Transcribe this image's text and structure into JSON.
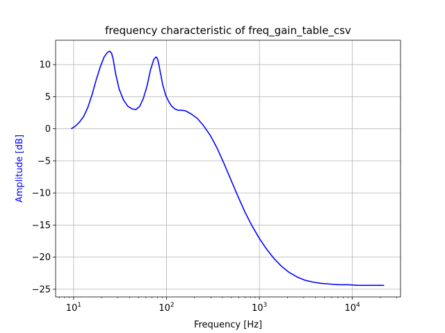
{
  "chart_data": {
    "type": "line",
    "title": "frequency characteristic of freq_gain_table_csv",
    "xlabel": "Frequency [Hz]",
    "ylabel": "Amplitude [dB]",
    "xscale": "log",
    "xlim": [
      6.4,
      33000
    ],
    "ylim": [
      -26.2,
      13.8
    ],
    "grid": true,
    "colors": {
      "line": "#0000ff",
      "ylabel": "#0000ff",
      "grid": "#b0b0b0"
    },
    "xticks": [
      {
        "value": 10,
        "base": "10",
        "exp": "1"
      },
      {
        "value": 100,
        "base": "10",
        "exp": "2"
      },
      {
        "value": 1000,
        "base": "10",
        "exp": "3"
      },
      {
        "value": 10000,
        "base": "10",
        "exp": "4"
      }
    ],
    "yticks": [
      {
        "value": 10,
        "label": "10"
      },
      {
        "value": 5,
        "label": "5"
      },
      {
        "value": 0,
        "label": "0"
      },
      {
        "value": -5,
        "label": "−5"
      },
      {
        "value": -10,
        "label": "−10"
      },
      {
        "value": -15,
        "label": "−15"
      },
      {
        "value": -20,
        "label": "−20"
      },
      {
        "value": -25,
        "label": "−25"
      }
    ],
    "series": [
      {
        "x": [
          9.4,
          10.4,
          11.5,
          12.8,
          14.2,
          15.7,
          17.4,
          19.3,
          21.3,
          23.1,
          24.5,
          25.6,
          26.7,
          28.3,
          30.9,
          34.4,
          38.4,
          42.6,
          46.9,
          51.4,
          56.2,
          61.5,
          67.3,
          72.9,
          77.2,
          80.1,
          82.5,
          85.7,
          91.2,
          98.1,
          106,
          114,
          123,
          132,
          142,
          160,
          185,
          215,
          250,
          295,
          350,
          415,
          495,
          590,
          700,
          830,
          1000,
          1200,
          1450,
          1750,
          2100,
          2550,
          3100,
          3800,
          4700,
          5800,
          7200,
          9000,
          11500,
          14500,
          18500,
          22000
        ],
        "y": [
          0.0,
          0.4,
          1.0,
          1.9,
          3.3,
          5.2,
          7.5,
          9.6,
          11.2,
          11.9,
          12.1,
          11.8,
          10.8,
          8.6,
          6.2,
          4.5,
          3.5,
          3.1,
          3.0,
          3.5,
          4.7,
          6.6,
          9.2,
          10.8,
          11.2,
          10.9,
          10.1,
          8.8,
          6.8,
          5.2,
          4.2,
          3.5,
          3.1,
          2.9,
          2.9,
          2.8,
          2.3,
          1.6,
          0.5,
          -1.0,
          -3.0,
          -5.4,
          -8.0,
          -10.6,
          -13.0,
          -15.1,
          -17.1,
          -18.8,
          -20.3,
          -21.5,
          -22.4,
          -23.1,
          -23.6,
          -23.9,
          -24.1,
          -24.2,
          -24.3,
          -24.3,
          -24.4,
          -24.4,
          -24.4,
          -24.4
        ]
      }
    ]
  }
}
